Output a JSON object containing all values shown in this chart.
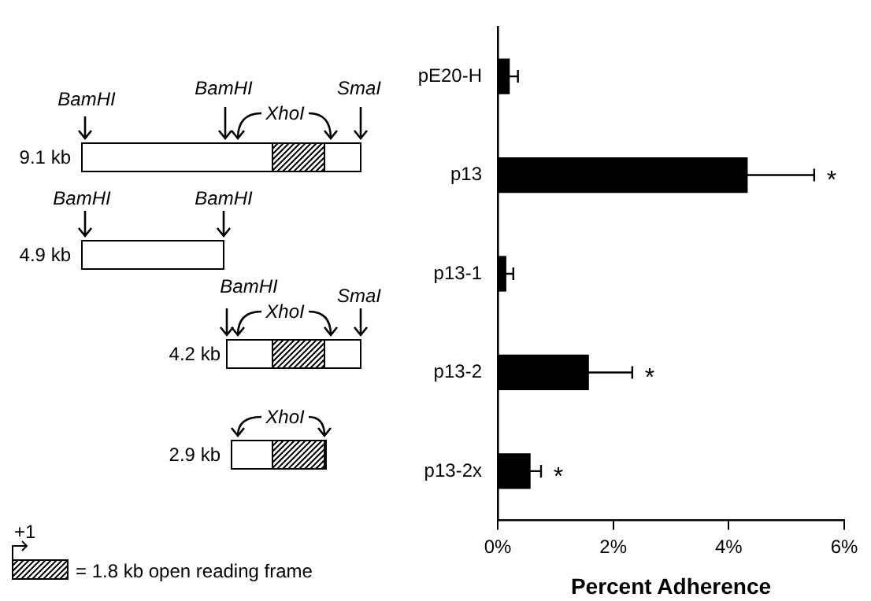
{
  "chart_data": {
    "type": "bar",
    "orientation": "horizontal",
    "xlabel": "Percent Adherence",
    "categories": [
      "pE20-H",
      "p13",
      "p13-1",
      "p13-2",
      "p13-2x"
    ],
    "values": [
      0.2,
      4.32,
      0.14,
      1.57,
      0.56
    ],
    "errors": [
      0.15,
      1.16,
      0.13,
      0.76,
      0.19
    ],
    "color": "#000000",
    "xlim": [
      0,
      6
    ],
    "xticks": [
      {
        "value": 0,
        "label": "0%"
      },
      {
        "value": 2,
        "label": "2%"
      },
      {
        "value": 4,
        "label": "4%"
      },
      {
        "value": 6,
        "label": "6%"
      }
    ],
    "grid": false,
    "legend": false,
    "annotations": [
      "BamHI",
      "BamHI",
      "XhoI",
      "SmaI",
      "9.1 kb",
      "BamHI",
      "BamHI",
      "4.9 kb",
      "BamHI",
      "XhoI",
      "SmaI",
      "4.2 kb",
      "XhoI",
      "2.9 kb",
      "+1",
      "= 1.8 kb open reading frame",
      "*",
      "*",
      "*"
    ]
  }
}
